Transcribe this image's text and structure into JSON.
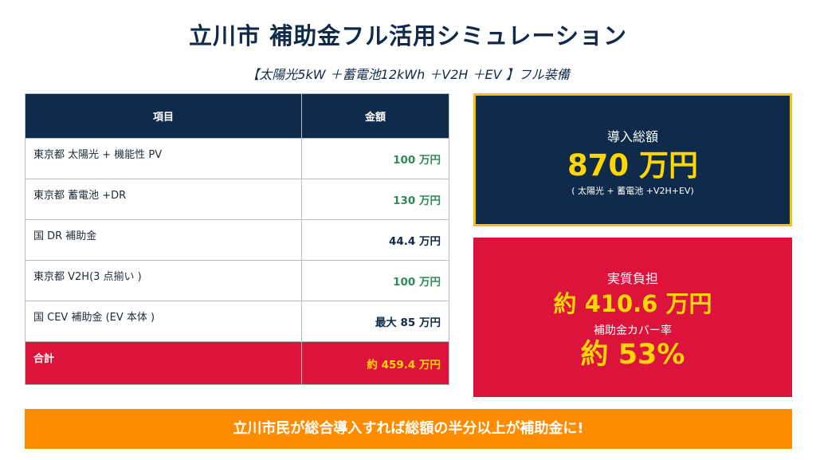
{
  "title": "立川市 補助金フル活用シミュレーション",
  "subtitle": "【太陽光5kW ＋蓄電池12kWh ＋V2H ＋EV 】フル装備",
  "table": {
    "headers": [
      "項目",
      "金額"
    ],
    "rows": [
      {
        "item": "東京都 太陽光 + 機能性 PV",
        "amount": "100 万円",
        "color": "#2e8b57"
      },
      {
        "item": "東京都 蓄電池 +DR",
        "amount": "130 万円",
        "color": "#2e8b57"
      },
      {
        "item": "国 DR 補助金",
        "amount": "44.4 万円",
        "color": "#0f2a4a"
      },
      {
        "item": "東京都 V2H(3 点揃い )",
        "amount": "100 万円",
        "color": "#2e8b57"
      },
      {
        "item": "国 CEV 補助金 (EV 本体 )",
        "amount": "最大 85 万円",
        "color": "#0f2a4a"
      }
    ],
    "total": {
      "item": "合計",
      "amount": "約 459.4 万円"
    }
  },
  "total_box": {
    "label": "導入総額",
    "value": "870 万円",
    "note": "( 太陽光 + 蓄電池 +V2H+EV)"
  },
  "burden_box": {
    "label": "実質負担",
    "value": "約 410.6 万円",
    "coverage_label": "補助金カバー率",
    "coverage_value": "約 53%"
  },
  "banner": "立川市民が総合導入すれば総額の半分以上が補助金に!",
  "colors": {
    "navy": "#0f2a4a",
    "red": "#dc143c",
    "orange": "#ff8c00",
    "yellow": "#ffd700",
    "green": "#2e8b57"
  }
}
